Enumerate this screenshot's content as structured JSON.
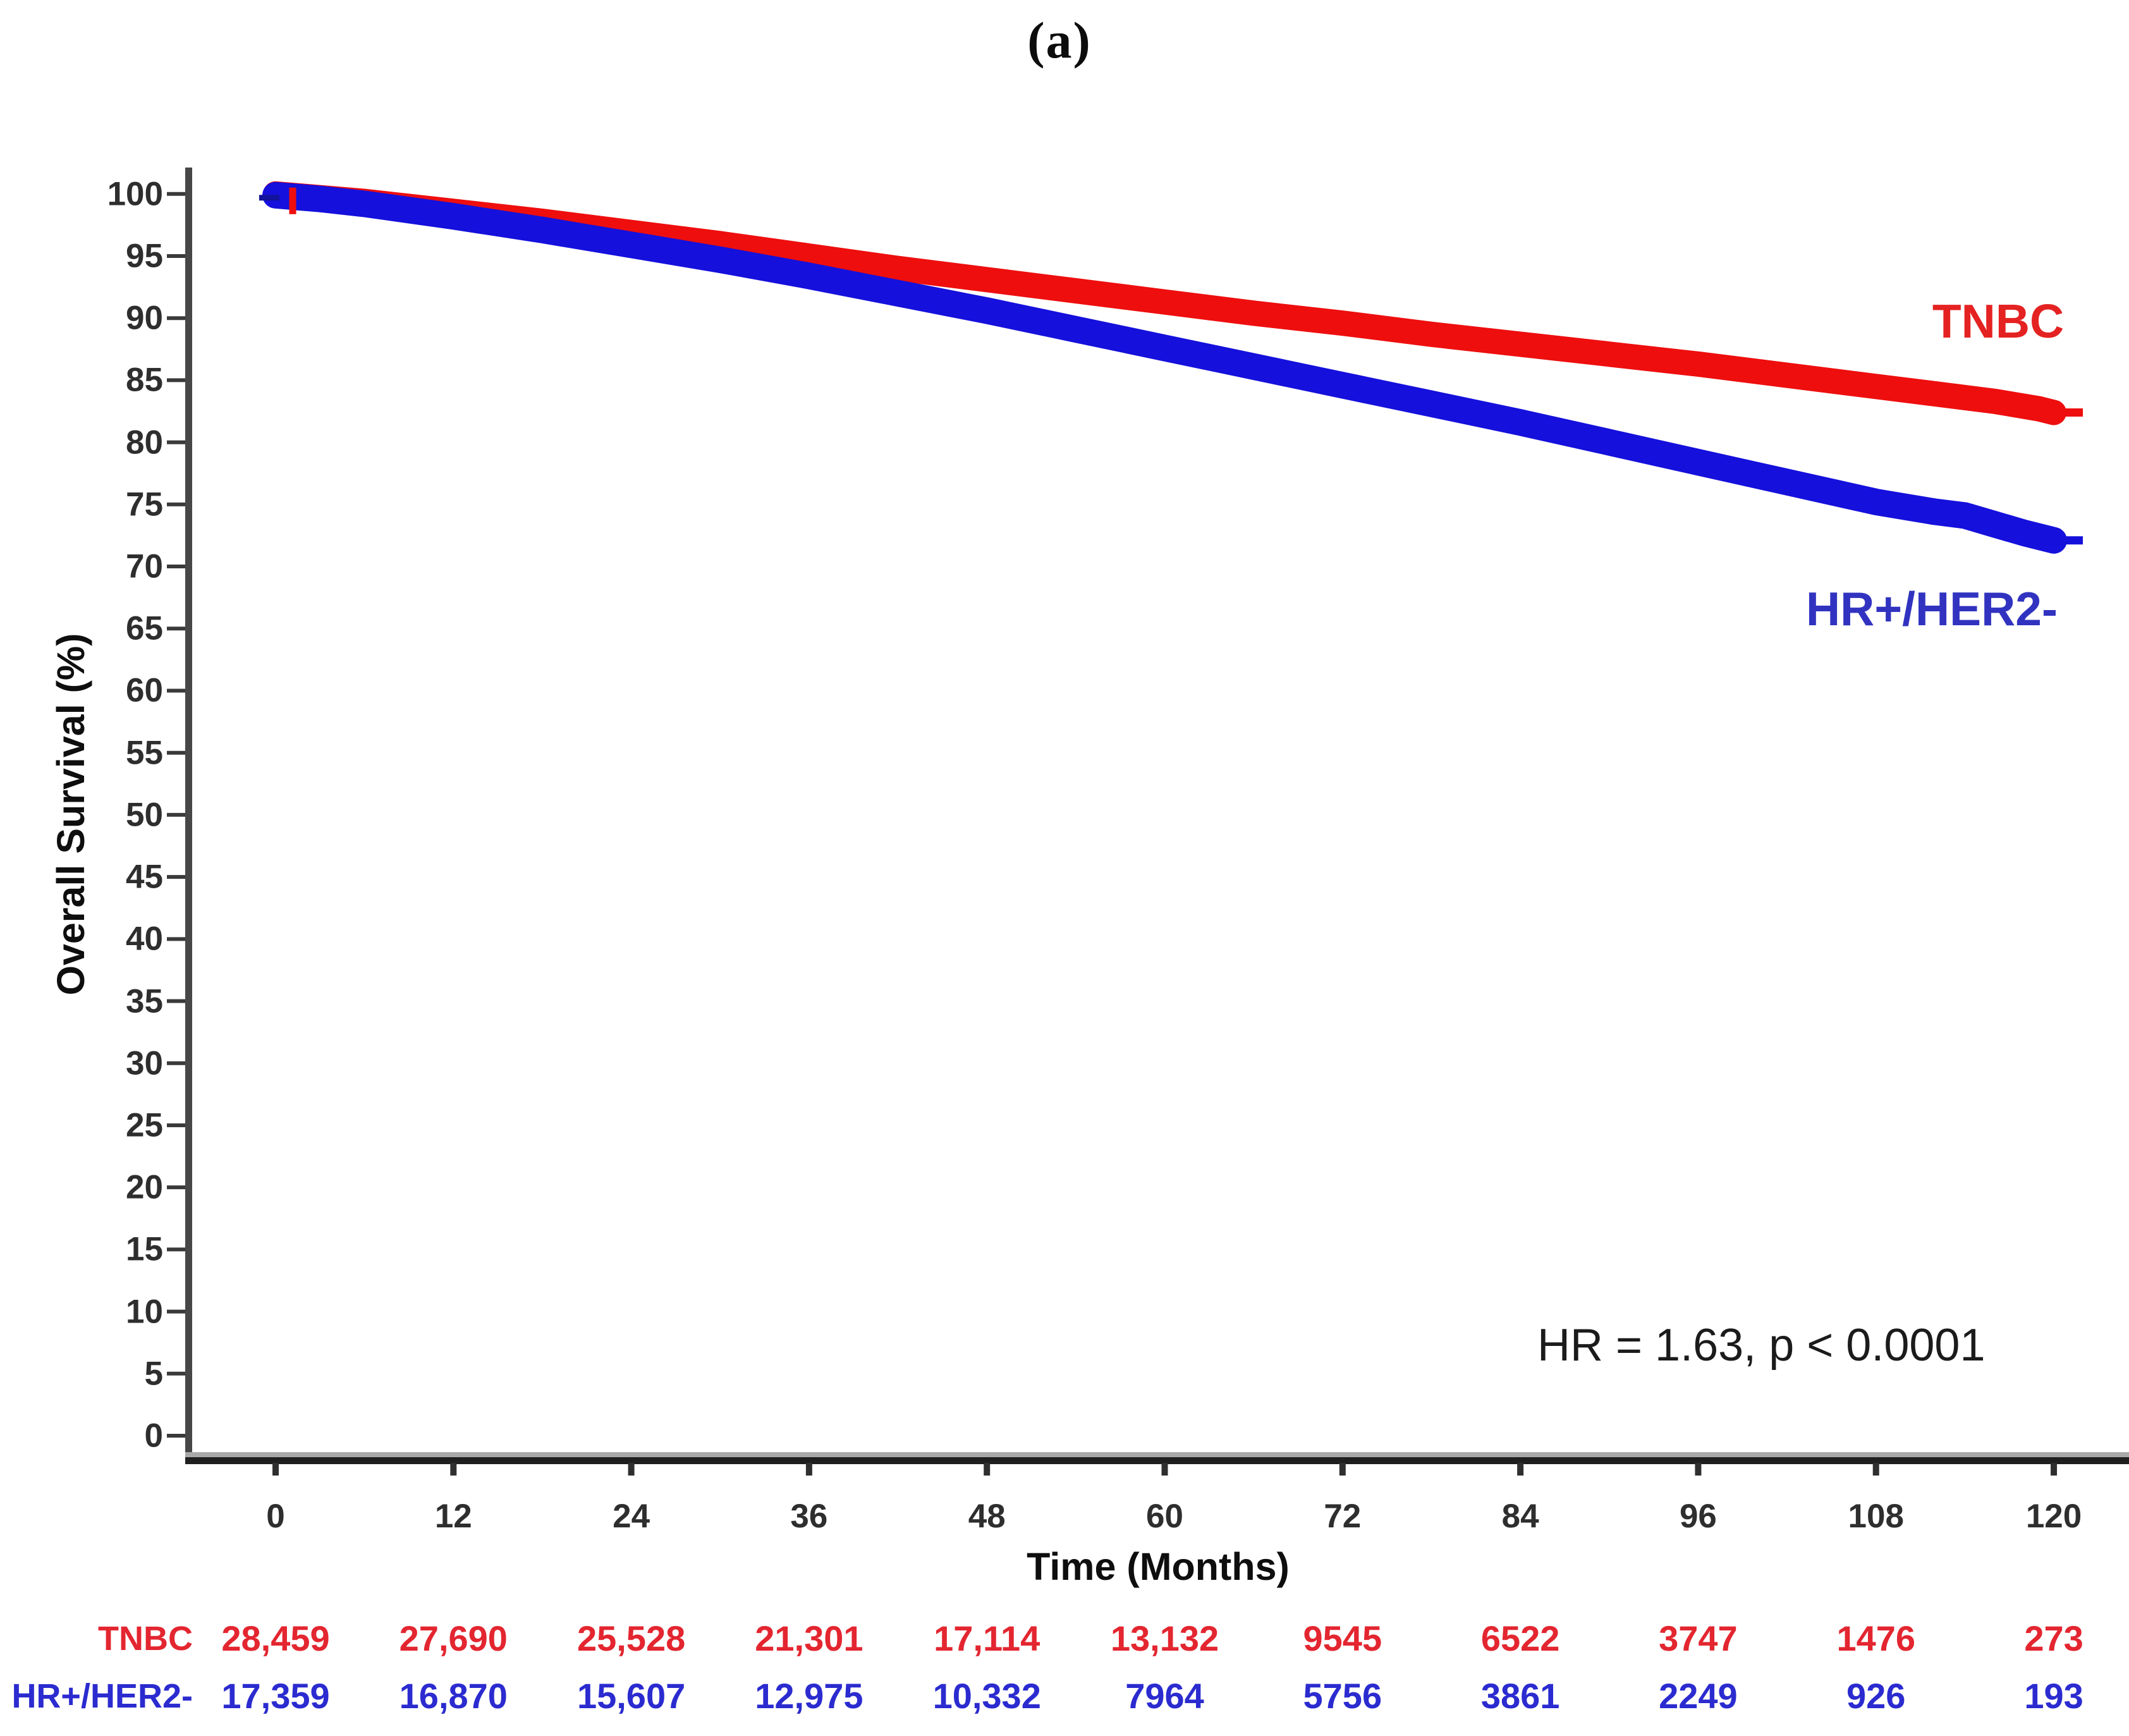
{
  "panel_label": "(a)",
  "chart_data": {
    "type": "line",
    "subtype": "kaplan-meier-survival",
    "title": "",
    "xlabel": "Time (Months)",
    "ylabel": "Overall Survival (%)",
    "xlim": [
      0,
      120
    ],
    "ylim": [
      0,
      100
    ],
    "x_ticks": [
      0,
      12,
      24,
      36,
      48,
      60,
      72,
      84,
      96,
      108,
      120
    ],
    "y_ticks": [
      100,
      95,
      90,
      85,
      80,
      75,
      70,
      65,
      60,
      55,
      50,
      45,
      40,
      35,
      30,
      25,
      20,
      15,
      10,
      5,
      0
    ],
    "grid": false,
    "legend_position": "labels-at-line-ends",
    "annotation": "HR = 1.63, p < 0.0001",
    "axis_color": "#3a3a3a",
    "series": [
      {
        "name": "TNBC",
        "curve_color": "#ee0e0e",
        "label_color": "#e52222",
        "points": [
          [
            0,
            100
          ],
          [
            3,
            99.7
          ],
          [
            6,
            99.4
          ],
          [
            12,
            98.6
          ],
          [
            18,
            97.8
          ],
          [
            24,
            96.9
          ],
          [
            30,
            96.0
          ],
          [
            36,
            95.0
          ],
          [
            42,
            94.0
          ],
          [
            48,
            93.1
          ],
          [
            54,
            92.2
          ],
          [
            60,
            91.3
          ],
          [
            66,
            90.4
          ],
          [
            72,
            89.6
          ],
          [
            78,
            88.7
          ],
          [
            84,
            87.9
          ],
          [
            90,
            87.1
          ],
          [
            96,
            86.3
          ],
          [
            102,
            85.4
          ],
          [
            108,
            84.5
          ],
          [
            112,
            83.9
          ],
          [
            116,
            83.3
          ],
          [
            119,
            82.7
          ],
          [
            120,
            82.4
          ]
        ],
        "end_censor_plus": true,
        "start_censor_tick": "vertical"
      },
      {
        "name": "HR+/HER2-",
        "curve_color": "#1510dc",
        "label_color": "#3133c0",
        "points": [
          [
            0,
            99.9
          ],
          [
            3,
            99.6
          ],
          [
            6,
            99.2
          ],
          [
            12,
            98.2
          ],
          [
            18,
            97.1
          ],
          [
            24,
            95.9
          ],
          [
            30,
            94.7
          ],
          [
            36,
            93.4
          ],
          [
            42,
            92.0
          ],
          [
            48,
            90.6
          ],
          [
            54,
            89.1
          ],
          [
            60,
            87.6
          ],
          [
            66,
            86.1
          ],
          [
            72,
            84.6
          ],
          [
            78,
            83.1
          ],
          [
            84,
            81.6
          ],
          [
            90,
            80.0
          ],
          [
            96,
            78.4
          ],
          [
            102,
            76.8
          ],
          [
            108,
            75.2
          ],
          [
            110,
            74.8
          ],
          [
            112,
            74.4
          ],
          [
            114,
            74.1
          ],
          [
            116,
            73.4
          ],
          [
            118,
            72.7
          ],
          [
            120,
            72.1
          ]
        ],
        "end_censor_plus": true,
        "start_censor_tick": "horizontal"
      }
    ]
  },
  "risk_table": {
    "columns_months": [
      0,
      12,
      24,
      36,
      48,
      60,
      72,
      84,
      96,
      108,
      120
    ],
    "rows": [
      {
        "label": "TNBC",
        "color": "#e32630",
        "values": [
          "28,459",
          "27,690",
          "25,528",
          "21,301",
          "17,114",
          "13,132",
          "9545",
          "6522",
          "3747",
          "1476",
          "273"
        ]
      },
      {
        "label": "HR+/HER2-",
        "color": "#2b2bd0",
        "values": [
          "17,359",
          "16,870",
          "15,607",
          "12,975",
          "10,332",
          "7964",
          "5756",
          "3861",
          "2249",
          "926",
          "193"
        ]
      }
    ]
  }
}
